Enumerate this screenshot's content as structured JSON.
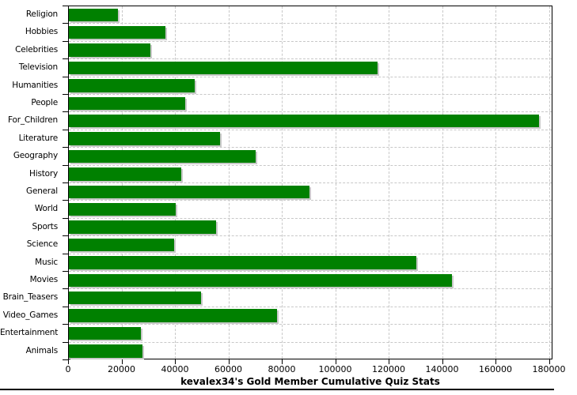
{
  "chart_data": {
    "type": "bar",
    "orientation": "horizontal",
    "title": "kevalex34's Gold Member Cumulative Quiz Stats",
    "categories": [
      "Religion",
      "Hobbies",
      "Celebrities",
      "Television",
      "Humanities",
      "People",
      "For_Children",
      "Literature",
      "Geography",
      "History",
      "General",
      "World",
      "Sports",
      "Science",
      "Music",
      "Movies",
      "Brain_Teasers",
      "Video_Games",
      "Entertainment",
      "Animals"
    ],
    "values": [
      18500,
      36000,
      30500,
      115500,
      47000,
      43500,
      176000,
      56500,
      70000,
      42000,
      90000,
      40000,
      55000,
      39500,
      130000,
      143500,
      49500,
      78000,
      27000,
      27500
    ],
    "xlabel": "",
    "ylabel": "",
    "xlim": [
      0,
      181333
    ],
    "x_ticks": [
      0,
      20000,
      40000,
      60000,
      80000,
      100000,
      120000,
      140000,
      160000,
      180000
    ],
    "x_tick_labels": [
      "0",
      "20000",
      "40000",
      "60000",
      "80000",
      "100000",
      "120000",
      "140000",
      "160000",
      "180000"
    ],
    "grid": true,
    "legend": false
  },
  "colors": {
    "bar": "#008000",
    "bar_shadow": "#c9c9c9",
    "grid": "#c8c8c8",
    "axis": "#000000",
    "text": "#000000",
    "background": "#ffffff"
  }
}
